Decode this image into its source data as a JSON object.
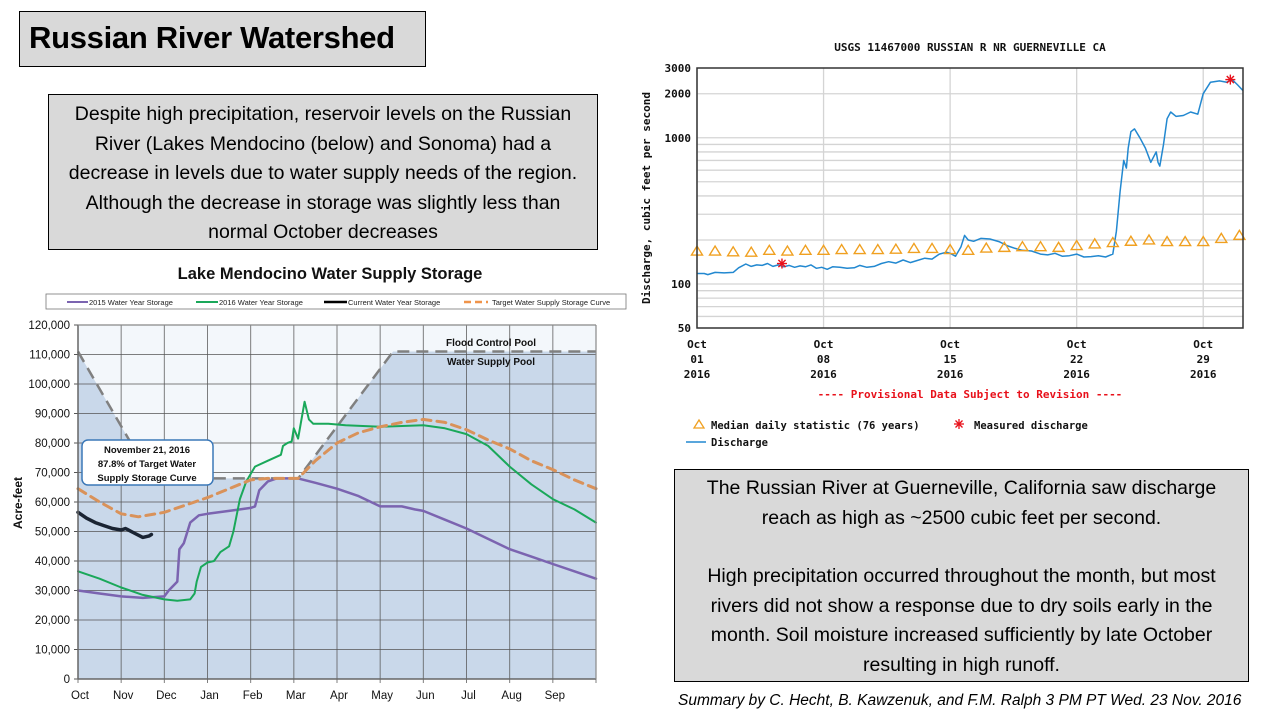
{
  "slide": {
    "title": "Russian River Watershed",
    "intro_text": "Despite high precipitation, reservoir levels on the Russian River (Lakes Mendocino (below) and Sonoma) had a decrease in levels due to water supply needs of the region. Although the decrease in storage was slightly less than normal October decreases",
    "summary_p1": "The Russian River at Guerneville, California saw discharge reach as high as ~2500 cubic feet per second.",
    "summary_p2": "High precipitation occurred throughout the month, but most rivers did not show a response due to dry soils early in the month. Soil moisture increased sufficiently by late October resulting in high runoff.",
    "credit": "Summary by C. Hecht, B. Kawzenuk, and F.M. Ralph 3 PM PT Wed. 23 Nov. 2016"
  },
  "chart_data": [
    {
      "type": "line",
      "title": "Lake Mendocino Water Supply Storage",
      "xlabel": "",
      "ylabel": "Acre-feet",
      "x_ticks": [
        "Oct",
        "Nov",
        "Dec",
        "Jan",
        "Feb",
        "Mar",
        "Apr",
        "May",
        "Jun",
        "Jul",
        "Aug",
        "Sep"
      ],
      "x_range_months": [
        0,
        12
      ],
      "y_ticks": [
        "0",
        "10,000",
        "20,000",
        "30,000",
        "40,000",
        "50,000",
        "60,000",
        "70,000",
        "80,000",
        "90,000",
        "100,000",
        "110,000",
        "120,000"
      ],
      "ylim": [
        0,
        120000
      ],
      "grid": true,
      "legend_position": "top",
      "pool_labels": {
        "flood": "Flood Control Pool",
        "supply": "Water Supply Pool"
      },
      "annotation": {
        "line1": "November 21, 2016",
        "line2": "87.8% of Target Water",
        "line3": "Supply Storage Curve"
      },
      "colors": {
        "pool_fill": "#c9d8ea",
        "plot_bg": "#f3f7fb",
        "flood_line": "#808080"
      },
      "flood_control_curve": {
        "x": [
          0,
          1.7,
          4.4,
          5.1,
          7.3,
          12
        ],
        "y": [
          111000,
          68000,
          68000,
          68000,
          111000,
          111000
        ]
      },
      "series": [
        {
          "name": "2015 Water Year Storage",
          "color": "#7b64b0",
          "dashed": false,
          "x": [
            0,
            0.5,
            1.0,
            1.5,
            2.0,
            2.1,
            2.3,
            2.35,
            2.45,
            2.6,
            2.8,
            3.0,
            3.5,
            4.0,
            4.1,
            4.2,
            4.4,
            4.6,
            5.1,
            5.5,
            6.0,
            6.5,
            7.0,
            7.5,
            7.8,
            8.0,
            8.5,
            9.0,
            9.5,
            10.0,
            10.5,
            11.0,
            11.5,
            12.0
          ],
          "y": [
            30000,
            29000,
            28000,
            27500,
            28000,
            30000,
            33000,
            44000,
            46000,
            53000,
            55500,
            56000,
            57000,
            58000,
            58500,
            64000,
            67000,
            68000,
            68000,
            66500,
            64500,
            62000,
            58500,
            58500,
            57500,
            57000,
            54000,
            51000,
            47500,
            44000,
            41500,
            39000,
            36500,
            34000
          ]
        },
        {
          "name": "2016 Water Year Storage",
          "color": "#1aa85a",
          "dashed": false,
          "x": [
            0,
            0.5,
            1.0,
            1.5,
            2.0,
            2.3,
            2.6,
            2.7,
            2.75,
            2.85,
            3.0,
            3.15,
            3.3,
            3.5,
            3.6,
            3.75,
            3.9,
            4.1,
            4.4,
            4.7,
            4.75,
            4.85,
            4.95,
            5.0,
            5.1,
            5.25,
            5.35,
            5.45,
            5.6,
            5.8,
            6.2,
            7.0,
            8.0,
            8.5,
            9.0,
            9.5,
            10.0,
            10.5,
            11.0,
            11.5,
            12.0
          ],
          "y": [
            36500,
            34000,
            31000,
            28500,
            27000,
            26500,
            27000,
            29000,
            33000,
            38000,
            39500,
            40000,
            43000,
            45000,
            50000,
            61000,
            67000,
            72000,
            74000,
            76000,
            79000,
            80000,
            80500,
            85000,
            81500,
            94000,
            88000,
            86500,
            86500,
            86500,
            86000,
            85500,
            86000,
            85000,
            83000,
            79000,
            72000,
            66000,
            61000,
            57500,
            53000
          ]
        },
        {
          "name": "Current Water Year Storage",
          "color": "#1a2433",
          "dashed": false,
          "x": [
            0,
            0.2,
            0.4,
            0.6,
            0.8,
            1.0,
            1.1,
            1.3,
            1.5,
            1.65,
            1.7
          ],
          "y": [
            56500,
            54500,
            53000,
            52000,
            51000,
            50500,
            51000,
            49500,
            48000,
            48500,
            49000
          ]
        },
        {
          "name": "Target Water Supply Storage Curve",
          "color": "#d9925a",
          "dashed": true,
          "x": [
            0,
            0.5,
            1.0,
            1.4,
            2.0,
            2.5,
            3.0,
            3.5,
            4.0,
            4.4,
            5.1,
            5.5,
            6.0,
            6.5,
            7.0,
            7.5,
            8.0,
            8.5,
            9.0,
            9.5,
            10.0,
            10.5,
            11.0,
            11.5,
            12.0
          ],
          "y": [
            64500,
            60000,
            56000,
            55000,
            56500,
            59000,
            61500,
            64500,
            67500,
            68000,
            68000,
            74000,
            80000,
            83500,
            85500,
            87000,
            88000,
            87000,
            84500,
            81000,
            78000,
            74000,
            71000,
            67500,
            64500
          ]
        }
      ]
    },
    {
      "type": "line",
      "title": "USGS 11467000 RUSSIAN R NR GUERNEVILLE CA",
      "xlabel": "",
      "ylabel": "Discharge, cubic feet per second",
      "y_scale": "log",
      "ylim": [
        50,
        3000
      ],
      "y_ticks": [
        "50",
        "100",
        "1000",
        "2000",
        "3000"
      ],
      "x_range_days": [
        1,
        31.2
      ],
      "x_ticks": [
        {
          "day": 1,
          "line1": "Oct",
          "line2": "01",
          "line3": "2016"
        },
        {
          "day": 8,
          "line1": "Oct",
          "line2": "08",
          "line3": "2016"
        },
        {
          "day": 15,
          "line1": "Oct",
          "line2": "15",
          "line3": "2016"
        },
        {
          "day": 22,
          "line1": "Oct",
          "line2": "22",
          "line3": "2016"
        },
        {
          "day": 29,
          "line1": "Oct",
          "line2": "29",
          "line3": "2016"
        }
      ],
      "grid": true,
      "provisional_note": "---- Provisional Data Subject to Revision ----",
      "legend_position": "bottom",
      "legend": {
        "median": "Median daily statistic (76 years)",
        "measured": "Measured discharge",
        "discharge": "Discharge"
      },
      "colors": {
        "discharge": "#2288d0",
        "median": "#f0a020",
        "measured": "#e8101a",
        "note": "#e8101a"
      },
      "series": [
        {
          "name": "Discharge",
          "x": [
            1,
            1.4,
            1.6,
            2.0,
            2.5,
            3.0,
            3.3,
            3.7,
            4.0,
            4.3,
            4.6,
            4.9,
            5.2,
            5.5,
            5.8,
            6.1,
            6.4,
            6.7,
            7.0,
            7.3,
            7.6,
            7.9,
            8.2,
            8.5,
            8.9,
            9.3,
            9.7,
            10.0,
            10.4,
            10.8,
            11.2,
            11.6,
            12.0,
            12.4,
            12.8,
            13.2,
            13.6,
            14.0,
            14.4,
            14.8,
            15.0,
            15.3,
            15.6,
            15.8,
            16.0,
            16.3,
            16.7,
            17.2,
            17.7,
            18.2,
            18.6,
            19.0,
            19.5,
            20.0,
            20.4,
            20.8,
            21.2,
            21.6,
            22.0,
            22.4,
            22.8,
            23.2,
            23.6,
            24.0,
            24.2,
            24.4,
            24.6,
            24.75,
            24.85,
            25.0,
            25.2,
            25.5,
            25.8,
            26.1,
            26.4,
            26.5,
            26.6,
            26.8,
            27.0,
            27.2,
            27.5,
            27.9,
            28.3,
            28.7,
            29.0,
            29.4,
            29.9,
            30.3,
            30.6,
            30.9,
            31.2
          ],
          "y": [
            118,
            118,
            116,
            120,
            119,
            120,
            129,
            137,
            132,
            135,
            134,
            138,
            132,
            135,
            131,
            134,
            130,
            133,
            131,
            135,
            128,
            130,
            126,
            131,
            130,
            128,
            129,
            134,
            130,
            132,
            138,
            142,
            139,
            146,
            140,
            145,
            150,
            148,
            160,
            165,
            162,
            155,
            180,
            215,
            200,
            196,
            205,
            203,
            195,
            182,
            175,
            170,
            168,
            160,
            158,
            162,
            155,
            156,
            160,
            153,
            154,
            156,
            153,
            160,
            230,
            430,
            700,
            620,
            850,
            1100,
            1150,
            1000,
            850,
            680,
            800,
            680,
            640,
            900,
            1350,
            1500,
            1400,
            1420,
            1500,
            1450,
            2000,
            2400,
            2450,
            2400,
            2500,
            2300,
            2100
          ]
        },
        {
          "name": "Median daily statistic (76 years)",
          "x": [
            1,
            2,
            3,
            4,
            5,
            6,
            7,
            8,
            9,
            10,
            11,
            12,
            13,
            14,
            15,
            16,
            17,
            18,
            19,
            20,
            21,
            22,
            23,
            24,
            25,
            26,
            27,
            28,
            29,
            30,
            31
          ],
          "y": [
            168,
            168,
            166,
            165,
            170,
            168,
            170,
            170,
            172,
            172,
            172,
            173,
            175,
            175,
            172,
            170,
            176,
            178,
            180,
            180,
            178,
            183,
            188,
            192,
            196,
            200,
            195,
            195,
            195,
            205,
            215
          ]
        },
        {
          "name": "Measured discharge",
          "x": [
            5.7,
            30.5
          ],
          "y": [
            138,
            2500
          ]
        }
      ]
    }
  ]
}
